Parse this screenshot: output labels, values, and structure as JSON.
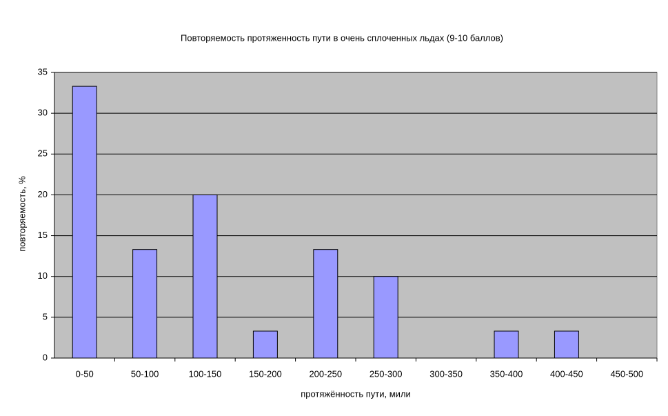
{
  "chart_data": {
    "type": "bar",
    "title": "Повторяемость протяженность пути в очень сплоченных льдах (9-10 баллов)",
    "x_label": "протяжённость пути, мили",
    "y_label": "повторяемость, %",
    "categories": [
      "0-50",
      "50-100",
      "100-150",
      "150-200",
      "200-250",
      "250-300",
      "300-350",
      "350-400",
      "400-450",
      "450-500"
    ],
    "values": [
      33.3,
      13.3,
      20,
      3.3,
      13.3,
      10,
      0,
      3.3,
      3.3,
      0
    ],
    "color": "#9999ff",
    "ylim": [
      0,
      35
    ],
    "yticks": [
      0,
      5,
      10,
      15,
      20,
      25,
      30,
      35
    ],
    "grid": true
  }
}
